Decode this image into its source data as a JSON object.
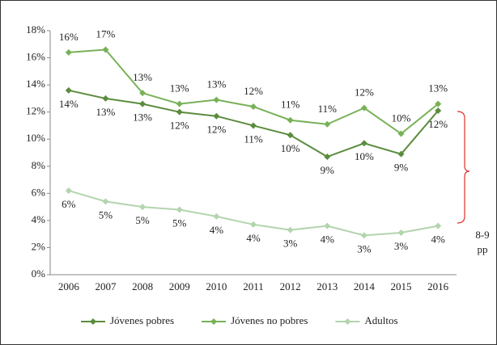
{
  "chart_data": {
    "type": "line",
    "categories": [
      "2006",
      "2007",
      "2008",
      "2009",
      "2010",
      "2011",
      "2012",
      "2013",
      "2014",
      "2015",
      "2016"
    ],
    "series": [
      {
        "name": "Jóvenes pobres",
        "color": "#5b8c3e",
        "values": [
          13.6,
          13.0,
          12.6,
          12.0,
          11.7,
          11.0,
          10.3,
          8.7,
          9.7,
          8.9,
          12.1
        ],
        "value_labels": [
          "14%",
          "13%",
          "13%",
          "12%",
          "12%",
          "11%",
          "10%",
          "9%",
          "10%",
          "9%",
          "12%"
        ]
      },
      {
        "name": "Jóvenes no pobres",
        "color": "#78b158",
        "values": [
          16.4,
          16.6,
          13.4,
          12.6,
          12.9,
          12.4,
          11.4,
          11.1,
          12.3,
          10.4,
          12.6
        ],
        "value_labels": [
          "16%",
          "17%",
          "13%",
          "13%",
          "13%",
          "12%",
          "11%",
          "11%",
          "12%",
          "10%",
          "13%"
        ]
      },
      {
        "name": "Adultos",
        "color": "#b3d4ae",
        "values": [
          6.2,
          5.4,
          5.0,
          4.8,
          4.3,
          3.7,
          3.3,
          3.6,
          2.9,
          3.1,
          3.6
        ],
        "value_labels": [
          "6%",
          "5%",
          "5%",
          "5%",
          "4%",
          "4%",
          "3%",
          "4%",
          "3%",
          "3%",
          "4%"
        ]
      }
    ],
    "ylim": [
      0,
      18
    ],
    "yticks": [
      {
        "value": 0,
        "label": "0%"
      },
      {
        "value": 2,
        "label": "2%"
      },
      {
        "value": 4,
        "label": "4%"
      },
      {
        "value": 6,
        "label": "6%"
      },
      {
        "value": 8,
        "label": "8%"
      },
      {
        "value": 10,
        "label": "10%"
      },
      {
        "value": 12,
        "label": "12%"
      },
      {
        "value": 14,
        "label": "14%"
      },
      {
        "value": 16,
        "label": "16%"
      },
      {
        "value": 18,
        "label": "18%"
      }
    ],
    "annotation": [
      "8-9",
      "pp"
    ],
    "legend": "bottom"
  }
}
